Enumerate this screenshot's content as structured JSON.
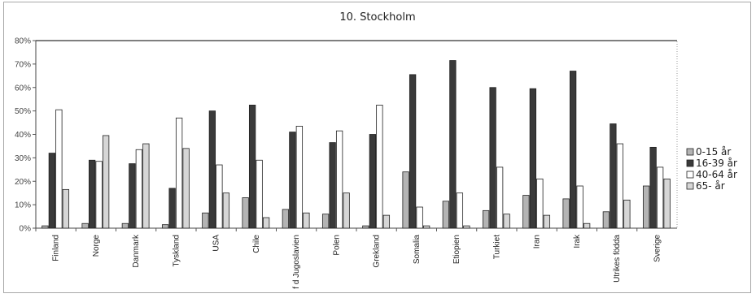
{
  "chart_data": {
    "type": "bar",
    "title": "10. Stockholm",
    "xlabel": "",
    "ylabel": "",
    "ylim": [
      0,
      80
    ],
    "yticks": [
      "0%",
      "10%",
      "20%",
      "30%",
      "40%",
      "50%",
      "60%",
      "70%",
      "80%"
    ],
    "grid": false,
    "legend_position": "right",
    "categories": [
      "Finland",
      "Norge",
      "Danmark",
      "Tyskland",
      "USA",
      "Chile",
      "f d Jugoslavien",
      "Polen",
      "Grekland",
      "Somalia",
      "Etiopien",
      "Turkiet",
      "Iran",
      "Irak",
      "Utrikes födda",
      "Sverige"
    ],
    "series": [
      {
        "name": "0-15 år",
        "color": "#b4b4b4",
        "values": [
          1,
          2,
          2,
          1.5,
          6.5,
          13,
          8,
          6,
          1,
          24,
          11.5,
          7.5,
          14,
          12.5,
          7,
          18
        ]
      },
      {
        "name": "16-39 år",
        "color": "#3a3a3a",
        "values": [
          32,
          29,
          27.5,
          17,
          50,
          52.5,
          41,
          36.5,
          40,
          65.5,
          71.5,
          60,
          59.5,
          67,
          44.5,
          34.5
        ]
      },
      {
        "name": "40-64 år",
        "color": "#ffffff",
        "values": [
          50.5,
          28.5,
          33.5,
          47,
          27,
          29,
          43.5,
          41.5,
          52.5,
          9,
          15,
          26,
          21,
          18,
          36,
          26
        ]
      },
      {
        "name": "65- år",
        "color": "#d6d6d6",
        "values": [
          16.5,
          39.5,
          36,
          34,
          15,
          4.5,
          6.5,
          15,
          5.5,
          1,
          1,
          6,
          5.5,
          2,
          12,
          21
        ]
      }
    ]
  }
}
